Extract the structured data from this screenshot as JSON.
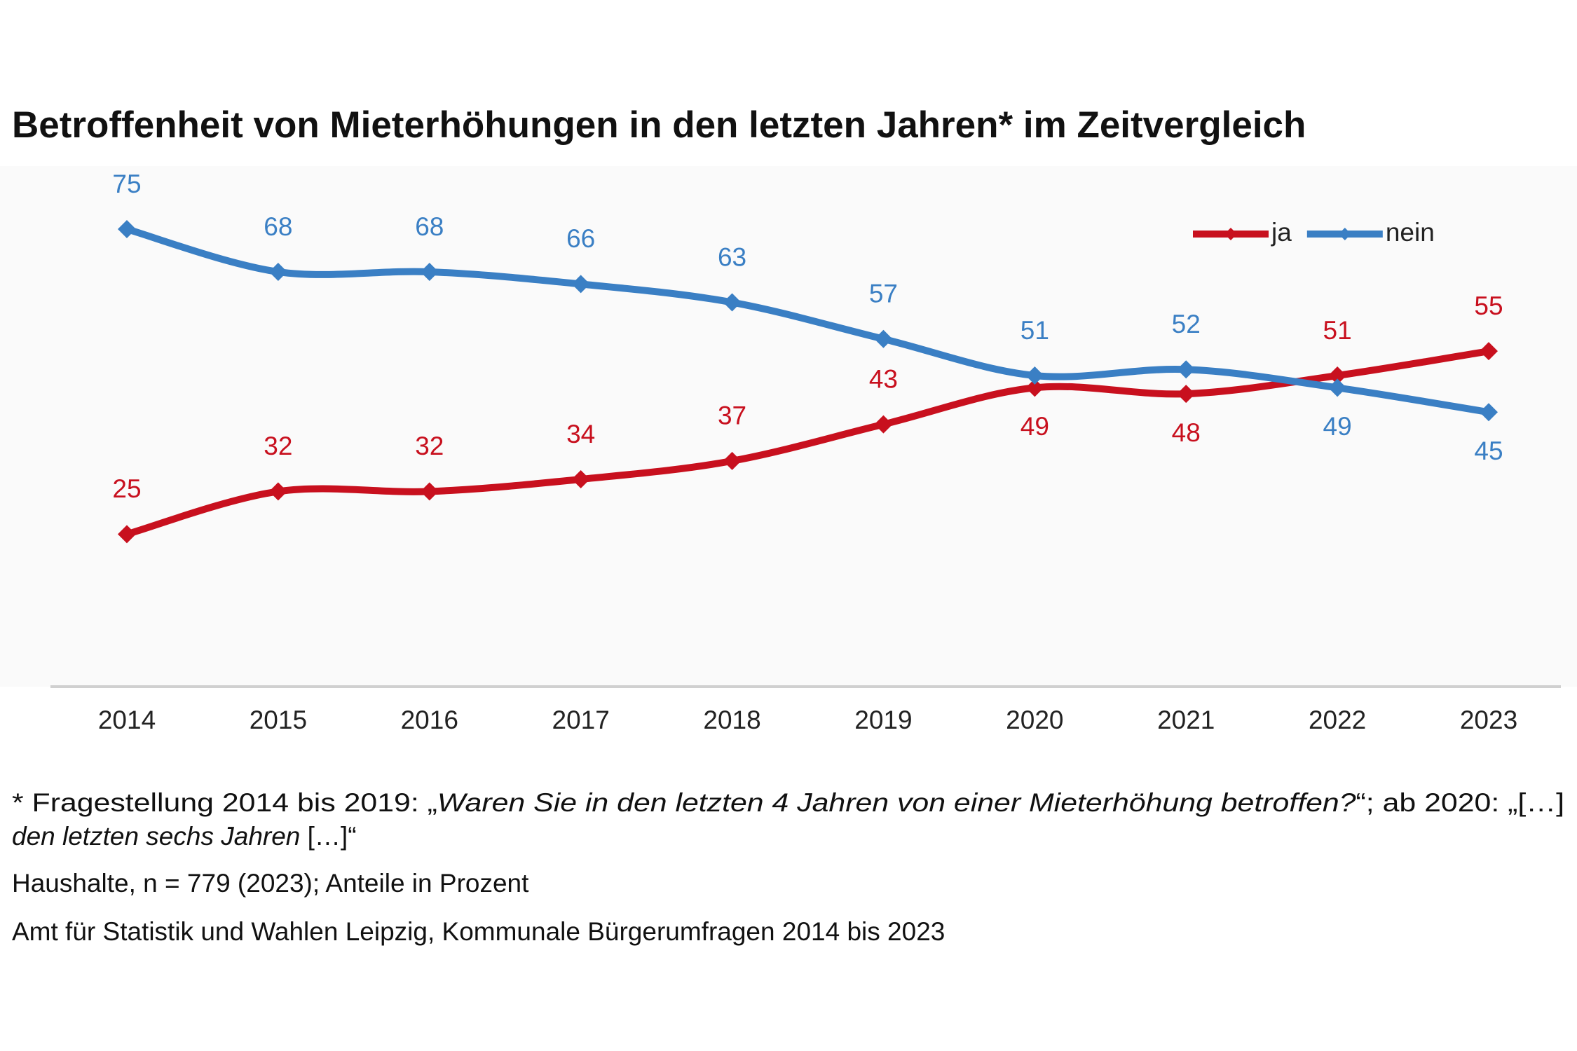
{
  "chart_data": {
    "type": "line",
    "title": "Betroffenheit von Mieterhöhungen in den letzten Jahren* im Zeitvergleich",
    "categories": [
      "2014",
      "2015",
      "2016",
      "2017",
      "2018",
      "2019",
      "2020",
      "2021",
      "2022",
      "2023"
    ],
    "series": [
      {
        "name": "ja",
        "color": "#c8101e",
        "values": [
          25,
          32,
          32,
          34,
          37,
          43,
          49,
          48,
          51,
          55
        ]
      },
      {
        "name": "nein",
        "color": "#3a7fc4",
        "values": [
          75,
          68,
          68,
          66,
          63,
          57,
          51,
          52,
          49,
          45
        ]
      }
    ],
    "ylim": [
      0,
      85
    ],
    "legend": "top-right",
    "notes": [
      [
        {
          "text": "* Fragestellung 2014 bis 2019: „",
          "italic": false
        },
        {
          "text": "Waren Sie in den letzten 4 Jahren von einer Mieterhöhung betroffen?",
          "italic": true
        },
        {
          "text": "“; ab 2020: „[…]",
          "italic": false
        }
      ],
      [
        {
          "text": "den letzten sechs Jahren",
          "italic": true
        },
        {
          "text": " […]“",
          "italic": false
        }
      ],
      [
        {
          "text": "Haushalte, n = 779 (2023); Anteile in Prozent",
          "italic": false
        }
      ],
      [
        {
          "text": "Amt für Statistik und Wahlen Leipzig, Kommunale Bürgerumfragen 2014 bis 2023",
          "italic": false
        }
      ]
    ]
  }
}
